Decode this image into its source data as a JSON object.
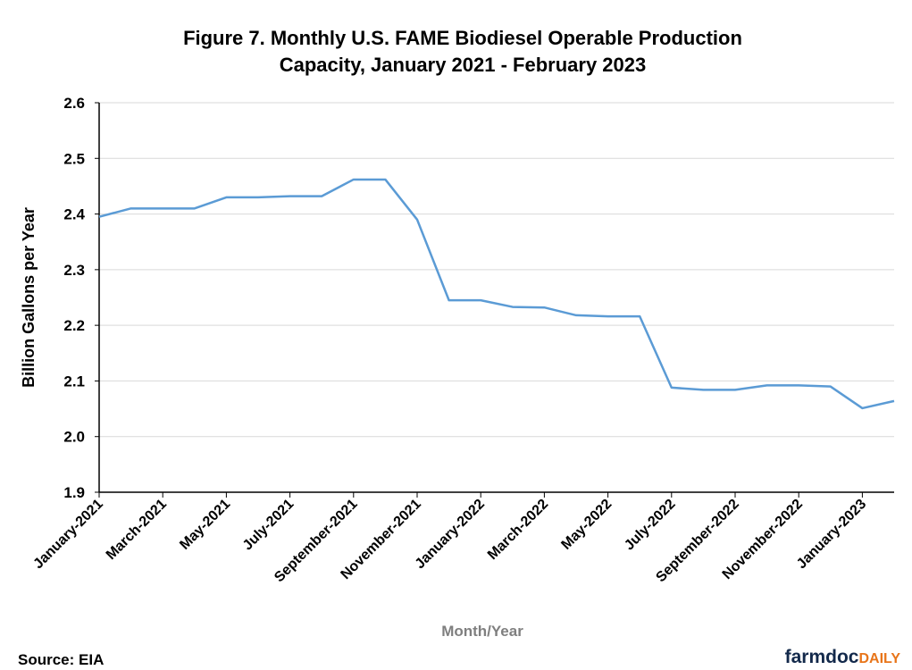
{
  "chart_data": {
    "type": "line",
    "title": [
      "Figure 7. Monthly U.S. FAME Biodiesel Operable Production",
      "Capacity, January 2021 - February 2023"
    ],
    "x_label": "Month/Year",
    "y_label": "Billion Gallons per Year",
    "source": "Source: EIA",
    "brand": {
      "name": "farmdoc",
      "suffix": "DAILY"
    },
    "categories": [
      "January-2021",
      null,
      "March-2021",
      null,
      "May-2021",
      null,
      "July-2021",
      null,
      "September-2021",
      null,
      "November-2021",
      null,
      "January-2022",
      null,
      "March-2022",
      null,
      "May-2022",
      null,
      "July-2022",
      null,
      "September-2022",
      null,
      "November-2022",
      null,
      "January-2023",
      null
    ],
    "values": [
      2.395,
      2.41,
      2.41,
      2.41,
      2.43,
      2.43,
      2.432,
      2.432,
      2.462,
      2.462,
      2.39,
      2.245,
      2.245,
      2.233,
      2.232,
      2.218,
      2.216,
      2.216,
      2.088,
      2.084,
      2.084,
      2.092,
      2.092,
      2.09,
      2.051,
      2.064
    ],
    "color": "#5b9bd5",
    "ylim": [
      1.9,
      2.6
    ],
    "yticks": [
      1.9,
      {
        "value": 2,
        "label": "2.0"
      },
      2.1,
      2.2,
      2.3,
      2.4,
      2.5,
      2.6
    ],
    "grid": true
  }
}
